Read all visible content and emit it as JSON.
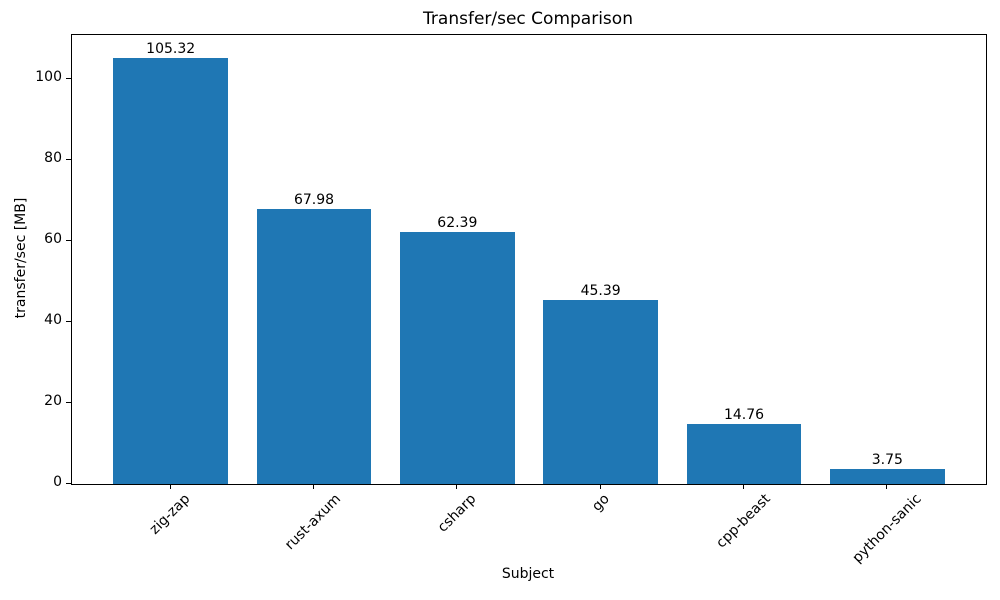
{
  "chart_data": {
    "type": "bar",
    "title": "Transfer/sec Comparison",
    "xlabel": "Subject",
    "ylabel": "transfer/sec [MB]",
    "categories": [
      "zig-zap",
      "rust-axum",
      "csharp",
      "go",
      "cpp-beast",
      "python-sanic"
    ],
    "values": [
      105.32,
      67.98,
      62.39,
      45.39,
      14.76,
      3.75
    ],
    "value_labels": [
      "105.32",
      "67.98",
      "62.39",
      "45.39",
      "14.76",
      "3.75"
    ],
    "yticks": [
      0,
      20,
      40,
      60,
      80,
      100
    ],
    "ylim": [
      0,
      111
    ],
    "bar_color": "#1f77b4",
    "grid": false,
    "legend_position": "none"
  }
}
